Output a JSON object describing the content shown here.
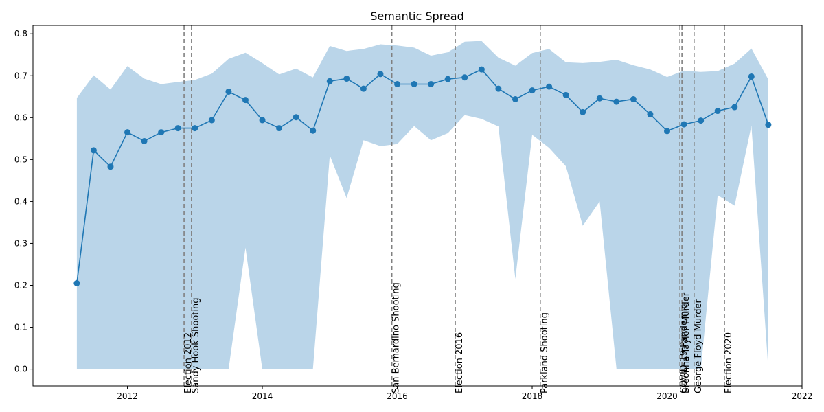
{
  "chart_data": {
    "type": "line",
    "title": "Semantic Spread",
    "xlabel": "",
    "ylabel": "",
    "xlim": [
      2010.6,
      2022.0
    ],
    "ylim": [
      -0.04,
      0.82
    ],
    "x_ticks": [
      2012,
      2014,
      2016,
      2018,
      2020,
      2022
    ],
    "y_ticks": [
      0.0,
      0.1,
      0.2,
      0.3,
      0.4,
      0.5,
      0.6,
      0.7,
      0.8
    ],
    "grid": false,
    "colors": {
      "line": "#1f77b4",
      "band": "#bad5e9",
      "event_line": "#808080"
    },
    "series": [
      {
        "x": [
          2011.25,
          2011.5,
          2011.75,
          2012.0,
          2012.25,
          2012.5,
          2012.75,
          2013.0,
          2013.25,
          2013.5,
          2013.75,
          2014.0,
          2014.25,
          2014.5,
          2014.75,
          2015.0,
          2015.25,
          2015.5,
          2015.75,
          2016.0,
          2016.25,
          2016.5,
          2016.75,
          2017.0,
          2017.25,
          2017.5,
          2017.75,
          2018.0,
          2018.25,
          2018.5,
          2018.75,
          2019.0,
          2019.25,
          2019.5,
          2019.75,
          2020.0,
          2020.25,
          2020.5,
          2020.75,
          2021.0,
          2021.25,
          2021.5
        ],
        "values": [
          0.205,
          0.522,
          0.483,
          0.565,
          0.544,
          0.565,
          0.575,
          0.575,
          0.594,
          0.662,
          0.642,
          0.594,
          0.575,
          0.601,
          0.569,
          0.687,
          0.693,
          0.669,
          0.704,
          0.68,
          0.68,
          0.68,
          0.692,
          0.696,
          0.715,
          0.669,
          0.644,
          0.665,
          0.674,
          0.654,
          0.613,
          0.646,
          0.638,
          0.644,
          0.608,
          0.568,
          0.584,
          0.593,
          0.616,
          0.625,
          0.698,
          0.583
        ],
        "upper": [
          0.647,
          0.701,
          0.667,
          0.723,
          0.693,
          0.68,
          0.685,
          0.69,
          0.705,
          0.74,
          0.755,
          0.73,
          0.703,
          0.717,
          0.696,
          0.771,
          0.759,
          0.764,
          0.775,
          0.772,
          0.767,
          0.748,
          0.756,
          0.781,
          0.783,
          0.743,
          0.724,
          0.754,
          0.764,
          0.732,
          0.73,
          0.733,
          0.738,
          0.725,
          0.715,
          0.697,
          0.712,
          0.709,
          0.711,
          0.729,
          0.765,
          0.691
        ],
        "lower": [
          0.0,
          0.0,
          0.0,
          0.0,
          0.0,
          0.0,
          0.0,
          0.0,
          0.0,
          0.0,
          0.29,
          0.0,
          0.0,
          0.0,
          0.0,
          0.51,
          0.408,
          0.546,
          0.532,
          0.537,
          0.58,
          0.546,
          0.563,
          0.606,
          0.597,
          0.579,
          0.215,
          0.559,
          0.528,
          0.484,
          0.342,
          0.4,
          0.0,
          0.0,
          0.0,
          0.0,
          0.0,
          0.0,
          0.415,
          0.39,
          0.581,
          0.0
        ]
      }
    ],
    "events": [
      {
        "x": 2012.84,
        "label": "Election 2012"
      },
      {
        "x": 2012.95,
        "label": "Sandy Hook Shooting"
      },
      {
        "x": 2015.92,
        "label": "San Bernardino Shooting"
      },
      {
        "x": 2016.86,
        "label": "Election 2016"
      },
      {
        "x": 2018.12,
        "label": "Parkland Shooting"
      },
      {
        "x": 2020.19,
        "label": "COVID-19 Pandemic"
      },
      {
        "x": 2020.22,
        "label": "Breonna Taylor Murder"
      },
      {
        "x": 2020.4,
        "label": "George Floyd Murder"
      },
      {
        "x": 2020.85,
        "label": "Election 2020"
      }
    ]
  }
}
